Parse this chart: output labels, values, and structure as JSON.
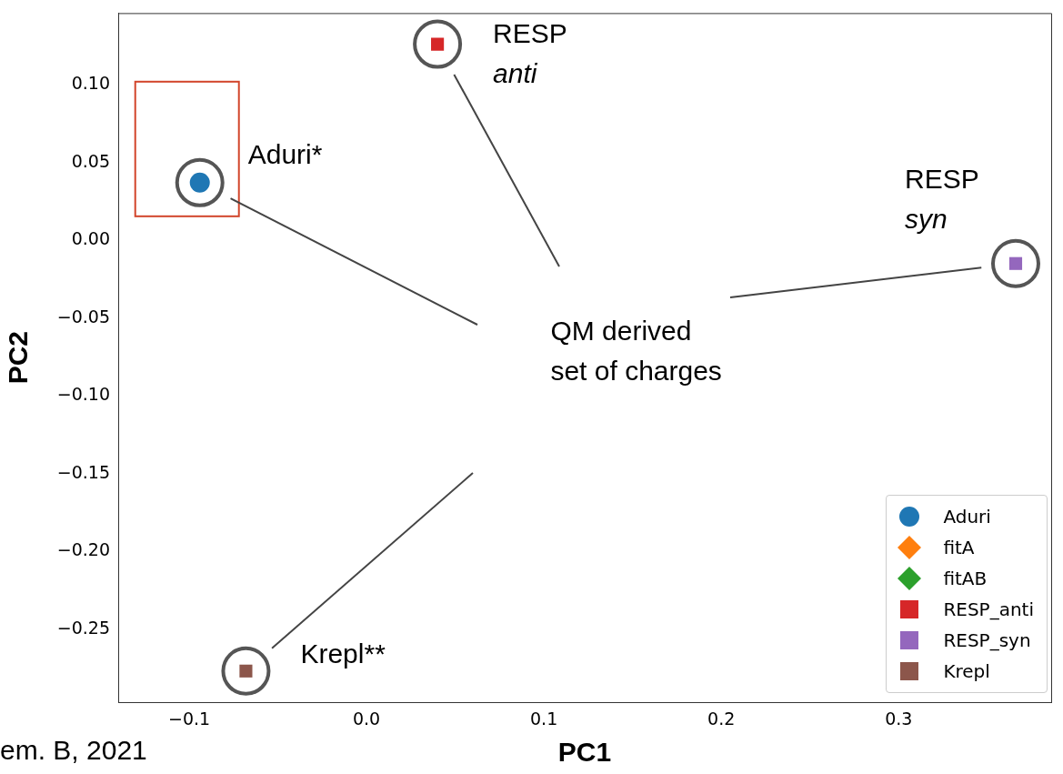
{
  "chart_data": {
    "type": "scatter",
    "xlabel": "PC1",
    "ylabel": "PC2",
    "xlim": [
      -0.14,
      0.386
    ],
    "ylim": [
      -0.297,
      0.146
    ],
    "xticks": [
      {
        "value": -0.1,
        "label": "−0.1"
      },
      {
        "value": 0,
        "label": "0.0"
      },
      {
        "value": 0.1,
        "label": "0.1"
      },
      {
        "value": 0.2,
        "label": "0.2"
      },
      {
        "value": 0.3,
        "label": "0.3"
      }
    ],
    "yticks": [
      {
        "value": 0.1,
        "label": "0.10"
      },
      {
        "value": 0.05,
        "label": "0.05"
      },
      {
        "value": 0,
        "label": "0.00"
      },
      {
        "value": -0.05,
        "label": "−0.05"
      },
      {
        "value": -0.1,
        "label": "−0.10"
      },
      {
        "value": -0.15,
        "label": "−0.15"
      },
      {
        "value": -0.2,
        "label": "−0.20"
      },
      {
        "value": -0.25,
        "label": "−0.25"
      }
    ],
    "grid": false,
    "legend": "bottom right",
    "series": [
      {
        "name": "Aduri",
        "color": "#1f77b4",
        "marker": "circle",
        "x": [
          -0.094
        ],
        "values": [
          0.037
        ]
      },
      {
        "name": "fitA",
        "color": "#ff7f0e",
        "marker": "diamond",
        "x": [
          null
        ],
        "values": [
          null
        ]
      },
      {
        "name": "fitAB",
        "color": "#2ca02c",
        "marker": "diamond",
        "x": [
          null
        ],
        "values": [
          null
        ]
      },
      {
        "name": "RESP_anti",
        "color": "#d62728",
        "marker": "square",
        "x": [
          0.04
        ],
        "values": [
          0.126
        ]
      },
      {
        "name": "RESP_syn",
        "color": "#9467bd",
        "marker": "square",
        "x": [
          0.366
        ],
        "values": [
          -0.015
        ]
      },
      {
        "name": "Krepl",
        "color": "#8c564b",
        "marker": "square",
        "x": [
          -0.068
        ],
        "values": [
          -0.277
        ]
      }
    ],
    "annotations": [
      {
        "text": "Aduri*",
        "x": -0.094,
        "y": 0.037
      },
      {
        "text": "RESP\nanti",
        "x": 0.04,
        "y": 0.126
      },
      {
        "text": "RESP\nsyn",
        "x": 0.366,
        "y": -0.015
      },
      {
        "text": "Krepl**",
        "x": -0.068,
        "y": -0.277
      },
      "QM derived\nset of charges",
      "em. B, 2021"
    ]
  }
}
